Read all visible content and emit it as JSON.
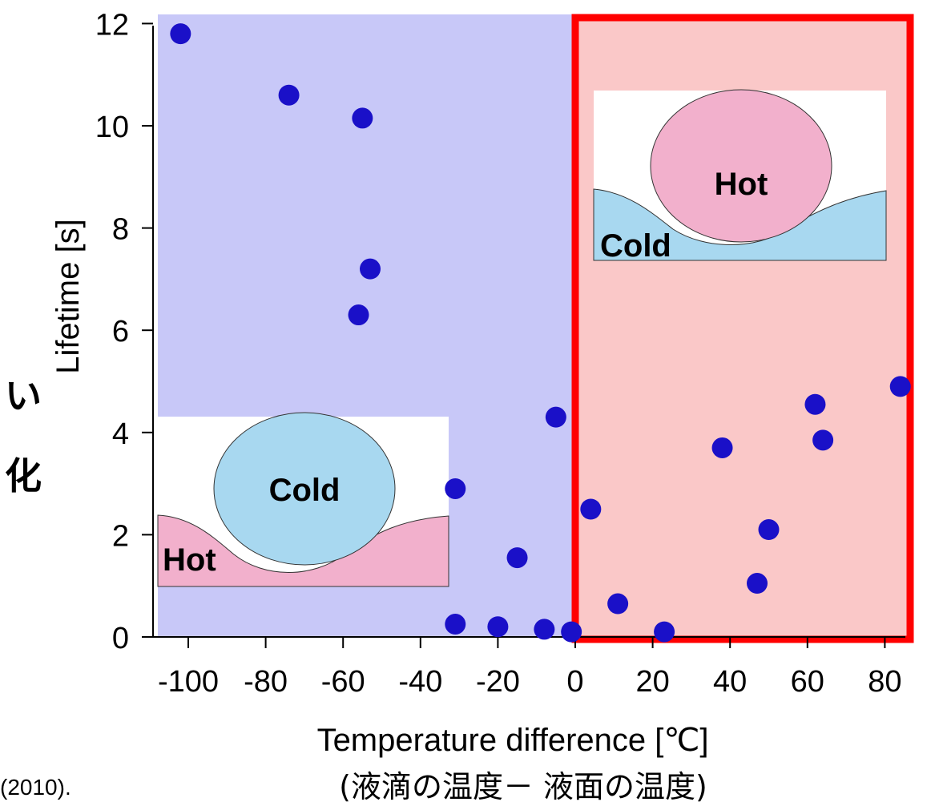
{
  "chart_data": {
    "type": "scatter",
    "xlabel": "Temperature difference [℃]",
    "xlabel_sub": "(液滴の温度－ 液面の温度)",
    "ylabel": "Lifetime [s]",
    "xlim": [
      -110,
      86
    ],
    "ylim": [
      0,
      12.3
    ],
    "x_ticks": [
      -100,
      -80,
      -60,
      -40,
      -20,
      0,
      20,
      40,
      60,
      80
    ],
    "y_ticks": [
      0,
      2,
      4,
      6,
      8,
      10,
      12
    ],
    "series": [
      {
        "points": [
          {
            "x": -102,
            "y": 11.8
          },
          {
            "x": -74,
            "y": 10.6
          },
          {
            "x": -55,
            "y": 10.15
          },
          {
            "x": -53,
            "y": 7.2
          },
          {
            "x": -56,
            "y": 6.3
          },
          {
            "x": -5,
            "y": 4.3
          },
          {
            "x": -31,
            "y": 2.9
          },
          {
            "x": -15,
            "y": 1.55
          },
          {
            "x": -31,
            "y": 0.25
          },
          {
            "x": -20,
            "y": 0.2
          },
          {
            "x": -8,
            "y": 0.15
          },
          {
            "x": -1,
            "y": 0.1
          },
          {
            "x": 4,
            "y": 2.5
          },
          {
            "x": 11,
            "y": 0.65
          },
          {
            "x": 23,
            "y": 0.1
          },
          {
            "x": 38,
            "y": 3.7
          },
          {
            "x": 47,
            "y": 1.05
          },
          {
            "x": 50,
            "y": 2.1
          },
          {
            "x": 62,
            "y": 4.55
          },
          {
            "x": 64,
            "y": 3.85
          },
          {
            "x": 84,
            "y": 4.9
          }
        ]
      }
    ],
    "grid": false,
    "regions": [
      {
        "range": [
          -110,
          0
        ],
        "color": "#c8c8f8"
      },
      {
        "range": [
          0,
          86
        ],
        "color": "#fac8c8"
      }
    ],
    "highlight_box_color": "#ff0000",
    "point_color": "#1a10c8",
    "insets": [
      {
        "drop_label": "Cold",
        "pool_label": "Hot",
        "drop_color": "#a8d8f0",
        "pool_color": "#f2b0cc"
      },
      {
        "drop_label": "Hot",
        "pool_label": "Cold",
        "drop_color": "#f2b0cc",
        "pool_color": "#a8d8f0"
      }
    ]
  },
  "side_text": [
    "い",
    "化"
  ],
  "citation": "(2010)."
}
